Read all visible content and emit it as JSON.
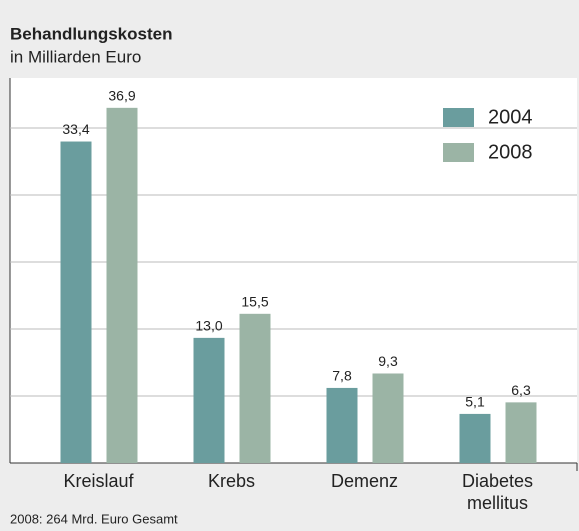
{
  "chart_data": {
    "type": "bar",
    "title": "Behandlungskosten",
    "subtitle": "in Milliarden Euro",
    "categories": [
      "Kreislauf",
      "Krebs",
      "Demenz",
      "Diabetes mellitus"
    ],
    "series": [
      {
        "name": "2004",
        "color": "#6a9d9e",
        "values": [
          33.4,
          13.0,
          7.8,
          5.1
        ],
        "value_labels": [
          "33,4",
          "13,0",
          "7,8",
          "5,1"
        ]
      },
      {
        "name": "2008",
        "color": "#9bb4a5",
        "values": [
          36.9,
          15.5,
          9.3,
          6.3
        ],
        "value_labels": [
          "36,9",
          "15,5",
          "9,3",
          "6,3"
        ]
      }
    ],
    "ylim": [
      0,
      40
    ],
    "grid": true,
    "legend": "top-right",
    "note": "2008: 264 Mrd. Euro Gesamt"
  }
}
